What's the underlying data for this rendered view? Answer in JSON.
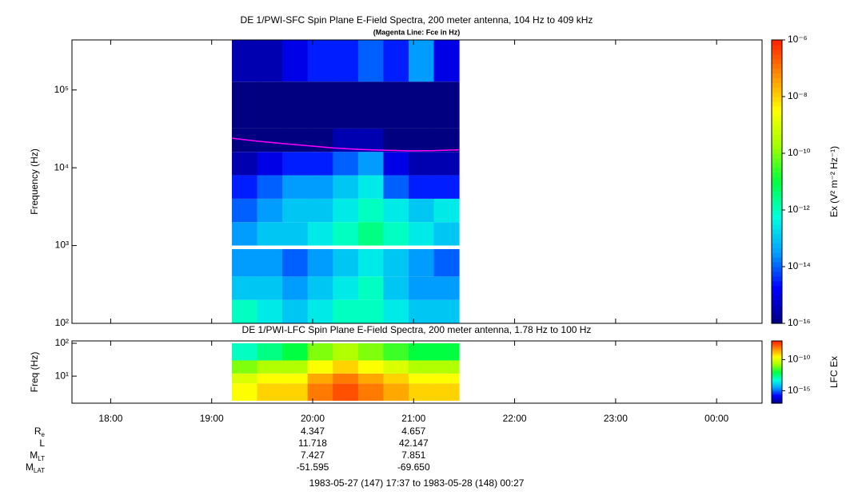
{
  "chart_data": [
    {
      "type": "heatmap",
      "title": "DE 1/PWI-SFC  Spin Plane E-Field Spectra, 200 meter antenna, 104 Hz to 409 kHz",
      "subtitle": "(Magenta Line: Fce in Hz)",
      "ylabel": "Frequency (Hz)",
      "colorbar_label": "Ex (V² m⁻² Hz⁻¹)",
      "xlim": [
        "1983-05-27T17:37",
        "1983-05-28T00:27"
      ],
      "x": [
        "1983-05-27T19:12",
        "1983-05-27T19:27",
        "1983-05-27T19:42",
        "1983-05-27T19:57",
        "1983-05-27T20:12",
        "1983-05-27T20:27",
        "1983-05-27T20:42",
        "1983-05-27T20:57",
        "1983-05-27T21:12",
        "1983-05-27T21:27"
      ],
      "ybins": [
        [
          100,
          200
        ],
        [
          200,
          400
        ],
        [
          400,
          900
        ],
        [
          1000,
          2000
        ],
        [
          2000,
          4000
        ],
        [
          4000,
          8000
        ],
        [
          8000,
          16000
        ],
        [
          16000,
          32000
        ],
        [
          32000,
          128000
        ],
        [
          128000,
          440000
        ]
      ],
      "values": [
        [
          1e-12,
          3e-13,
          1e-13,
          3e-13,
          1e-12,
          1e-12,
          3e-13,
          1e-13,
          1e-13
        ],
        [
          1e-13,
          1e-13,
          3e-14,
          1e-13,
          3e-13,
          1e-12,
          1e-13,
          3e-14,
          3e-14
        ],
        [
          3e-14,
          3e-14,
          1e-14,
          3e-14,
          1e-13,
          3e-13,
          1e-13,
          3e-14,
          1e-14
        ],
        [
          3e-14,
          1e-13,
          1e-13,
          3e-13,
          1e-12,
          3e-12,
          1e-12,
          3e-13,
          1e-13
        ],
        [
          1e-14,
          3e-14,
          1e-13,
          1e-13,
          3e-13,
          1e-12,
          3e-13,
          1e-13,
          3e-13
        ],
        [
          3e-15,
          1e-14,
          3e-14,
          3e-14,
          1e-13,
          3e-13,
          1e-14,
          3e-15,
          3e-15
        ],
        [
          3e-16,
          1e-15,
          3e-15,
          3e-15,
          1e-14,
          3e-14,
          1e-15,
          3e-16,
          3e-16
        ],
        [
          1e-16,
          1e-16,
          1e-16,
          1e-16,
          3e-16,
          3e-16,
          1e-16,
          1e-16,
          1e-16
        ],
        [
          1e-16,
          1e-16,
          1e-16,
          1e-16,
          1e-16,
          1e-16,
          1e-16,
          1e-16,
          1e-16
        ],
        [
          3e-16,
          3e-16,
          1e-15,
          3e-15,
          3e-15,
          1e-14,
          3e-15,
          3e-14,
          1e-15
        ]
      ],
      "log_y": true,
      "ylim": [
        100,
        440000
      ],
      "yticks": [
        {
          "value": 100,
          "label": "10²"
        },
        {
          "value": 1000,
          "label": "10³"
        },
        {
          "value": 10000,
          "label": "10⁴"
        },
        {
          "value": 100000,
          "label": "10⁵"
        }
      ],
      "log_z": true,
      "zlim": [
        1e-16,
        1e-06
      ],
      "zticks": [
        {
          "value": 1e-16,
          "label": "10⁻¹⁶"
        },
        {
          "value": 1e-14,
          "label": "10⁻¹⁴"
        },
        {
          "value": 1e-12,
          "label": "10⁻¹²"
        },
        {
          "value": 1e-10,
          "label": "10⁻¹⁰"
        },
        {
          "value": 1e-08,
          "label": "10⁻⁸"
        },
        {
          "value": 1e-06,
          "label": "10⁻⁶"
        }
      ],
      "colormap": [
        "#000080",
        "#0000ff",
        "#00a0ff",
        "#00ffe0",
        "#00ff40",
        "#a0ff00",
        "#ffff00",
        "#ff9000",
        "#ff2000"
      ],
      "line": {
        "color": "#ff00ff",
        "x": [
          "1983-05-27T19:12",
          "1983-05-27T19:27",
          "1983-05-27T19:42",
          "1983-05-27T19:57",
          "1983-05-27T20:12",
          "1983-05-27T20:27",
          "1983-05-27T20:42",
          "1983-05-27T20:57",
          "1983-05-27T21:12",
          "1983-05-27T21:27"
        ],
        "values": [
          24000,
          22000,
          20500,
          19200,
          18000,
          17200,
          16800,
          16500,
          16600,
          17000
        ]
      }
    },
    {
      "type": "heatmap",
      "title": "DE 1/PWI-LFC  Spin Plane E-Field Spectra, 200 meter antenna, 1.78 Hz to 100 Hz",
      "ylabel": "Freq (Hz)",
      "colorbar_label": "LFC Ex",
      "xlim": [
        "1983-05-27T17:37",
        "1983-05-28T00:27"
      ],
      "xticks": [
        {
          "value": "1983-05-27T18:00",
          "label": "18:00"
        },
        {
          "value": "1983-05-27T19:00",
          "label": "19:00"
        },
        {
          "value": "1983-05-27T20:00",
          "label": "20:00"
        },
        {
          "value": "1983-05-27T21:00",
          "label": "21:00"
        },
        {
          "value": "1983-05-27T22:00",
          "label": "22:00"
        },
        {
          "value": "1983-05-27T23:00",
          "label": "23:00"
        },
        {
          "value": "1983-05-28T00:00",
          "label": "00:00"
        }
      ],
      "x": [
        "1983-05-27T19:12",
        "1983-05-27T19:27",
        "1983-05-27T19:42",
        "1983-05-27T19:57",
        "1983-05-27T20:12",
        "1983-05-27T20:27",
        "1983-05-27T20:42",
        "1983-05-27T20:57",
        "1983-05-27T21:12",
        "1983-05-27T21:27"
      ],
      "ybins": [
        [
          1.78,
          6
        ],
        [
          6,
          12
        ],
        [
          12,
          30
        ],
        [
          30,
          100
        ]
      ],
      "values": [
        [
          3e-10,
          1e-09,
          1e-09,
          1e-08,
          3e-08,
          1e-08,
          3e-09,
          1e-09,
          1e-09
        ],
        [
          1e-10,
          3e-10,
          3e-10,
          3e-09,
          1e-08,
          3e-09,
          1e-09,
          3e-10,
          3e-10
        ],
        [
          1e-11,
          3e-11,
          3e-11,
          3e-10,
          1e-09,
          3e-10,
          1e-10,
          3e-11,
          3e-11
        ],
        [
          1e-13,
          3e-13,
          1e-12,
          1e-11,
          3e-11,
          1e-11,
          3e-12,
          1e-12,
          1e-12
        ]
      ],
      "log_y": true,
      "ylim": [
        1.5,
        118
      ],
      "yticks": [
        {
          "value": 10,
          "label": "10¹"
        },
        {
          "value": 100,
          "label": "10²"
        }
      ],
      "log_z": true,
      "zlim": [
        1e-17,
        1e-07
      ],
      "zticks": [
        {
          "value": 1e-15,
          "label": "10⁻¹⁵"
        },
        {
          "value": 1e-10,
          "label": "10⁻¹⁰"
        }
      ],
      "colormap": [
        "#000080",
        "#0000ff",
        "#00a0ff",
        "#00ffe0",
        "#00ff40",
        "#a0ff00",
        "#ffff00",
        "#ff9000",
        "#ff2000"
      ]
    }
  ],
  "ephemeris": {
    "times": [
      "1983-05-27T20:00",
      "1983-05-27T21:00"
    ],
    "rows": [
      {
        "label": "R",
        "sub": "e",
        "values": [
          "4.347",
          "4.657"
        ]
      },
      {
        "label": "L",
        "values": [
          "11.718",
          "42.147"
        ]
      },
      {
        "label": "M",
        "sub": "LT",
        "values": [
          "7.427",
          "7.851"
        ]
      },
      {
        "label": "M",
        "sub": "LAT",
        "values": [
          "-51.595",
          "-69.650"
        ]
      }
    ]
  },
  "footer": "1983-05-27 (147) 17:37 to 1983-05-28 (148) 00:27"
}
